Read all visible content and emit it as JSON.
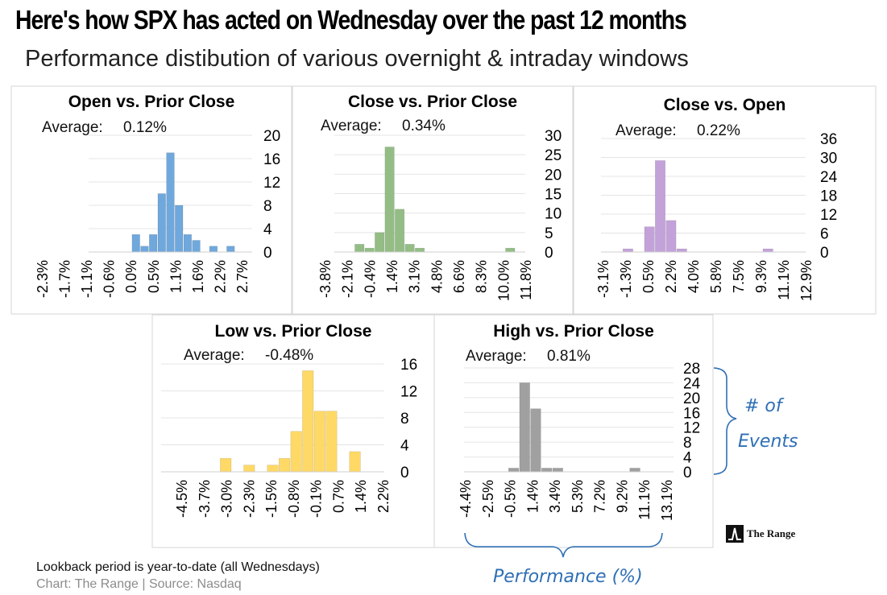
{
  "title": "Here's how SPX has acted on Wednesday over the past 12 months",
  "subtitle": "Performance distibution of various overnight & intraday windows",
  "footnote": "Lookback period is year-to-date (all Wednesdays)",
  "source": "Chart: The Range | Source: Nasdaq",
  "logo_text": "The Range",
  "annotations": {
    "events_line1": "# of",
    "events_line2": "Events",
    "performance": "Performance (%)"
  },
  "colors": {
    "blue": "#6fa8dc",
    "green": "#93bd85",
    "purple": "#c3a2d9",
    "yellow": "#ffd966",
    "gray": "#a0a0a0",
    "accent": "#2e6fb5",
    "grid": "#e4e4e4"
  },
  "chart_data": [
    {
      "type": "bar",
      "title": "Open vs. Prior Close",
      "average_label": "Average:",
      "average_value": "0.12%",
      "color": "#6fa8dc",
      "ylim": [
        0,
        20
      ],
      "yticks": [
        "20",
        "16",
        "12",
        "8",
        "4",
        "0"
      ],
      "xtick_labels": [
        "-2.3%",
        "-1.7%",
        "-1.1%",
        "-0.6%",
        "0.0%",
        "0.5%",
        "1.1%",
        "1.6%",
        "2.2%",
        "2.7%"
      ],
      "bin_values": [
        0,
        0,
        0,
        0,
        0,
        3,
        1,
        3,
        10,
        17,
        8,
        3,
        2,
        0,
        1,
        0,
        1,
        0,
        0
      ]
    },
    {
      "type": "bar",
      "title": "Close vs. Prior Close",
      "average_label": "Average:",
      "average_value": "0.34%",
      "color": "#93bd85",
      "ylim": [
        0,
        30
      ],
      "yticks": [
        "30",
        "25",
        "20",
        "15",
        "10",
        "5",
        "0"
      ],
      "xtick_labels": [
        "-3.8%",
        "-2.1%",
        "-0.4%",
        "1.4%",
        "3.1%",
        "4.8%",
        "6.6%",
        "8.3%",
        "10.0%",
        "11.8%"
      ],
      "bin_values": [
        0,
        0,
        2,
        1,
        5,
        27,
        11,
        2,
        1,
        0,
        0,
        0,
        0,
        0,
        0,
        0,
        0,
        1,
        0
      ]
    },
    {
      "type": "bar",
      "title": "Close vs. Open",
      "average_label": "Average:",
      "average_value": "0.22%",
      "color": "#c3a2d9",
      "ylim": [
        0,
        36
      ],
      "yticks": [
        "36",
        "30",
        "24",
        "18",
        "12",
        "6",
        "0"
      ],
      "xtick_labels": [
        "-3.1%",
        "-1.3%",
        "0.5%",
        "2.2%",
        "4.0%",
        "5.8%",
        "7.5%",
        "9.3%",
        "11.1%",
        "12.9%"
      ],
      "bin_values": [
        0,
        0,
        1,
        0,
        8,
        29,
        10,
        1,
        0,
        0,
        0,
        0,
        0,
        0,
        0,
        1,
        0,
        0,
        0
      ]
    },
    {
      "type": "bar",
      "title": "Low vs. Prior Close",
      "average_label": "Average:",
      "average_value": "-0.48%",
      "color": "#ffd966",
      "ylim": [
        0,
        16
      ],
      "yticks": [
        "16",
        "12",
        "8",
        "4",
        "0"
      ],
      "xtick_labels": [
        "-4.5%",
        "-3.7%",
        "-3.0%",
        "-2.3%",
        "-1.5%",
        "-0.8%",
        "-0.1%",
        "0.7%",
        "1.4%",
        "2.2%"
      ],
      "bin_values": [
        0,
        0,
        0,
        0,
        0,
        2,
        0,
        1,
        0,
        1,
        2,
        6,
        15,
        9,
        9,
        0,
        3,
        0,
        0
      ]
    },
    {
      "type": "bar",
      "title": "High vs. Prior Close",
      "average_label": "Average:",
      "average_value": "0.81%",
      "color": "#a0a0a0",
      "ylim": [
        0,
        28
      ],
      "yticks": [
        "28",
        "24",
        "20",
        "16",
        "12",
        "8",
        "4",
        "0"
      ],
      "xtick_labels": [
        "-4.4%",
        "-2.5%",
        "-0.5%",
        "1.4%",
        "3.4%",
        "5.3%",
        "7.2%",
        "9.2%",
        "11.1%",
        "13.1%"
      ],
      "bin_values": [
        0,
        0,
        0,
        0,
        1,
        24,
        17,
        1,
        1,
        0,
        0,
        0,
        0,
        0,
        0,
        1,
        0,
        0,
        0
      ]
    }
  ]
}
